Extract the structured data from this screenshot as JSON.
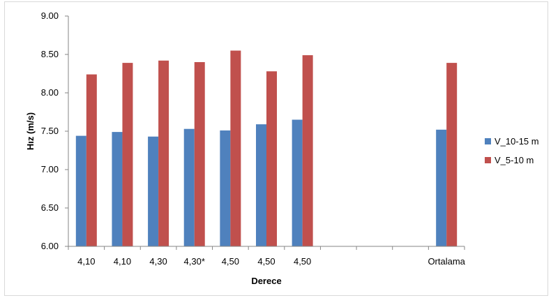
{
  "chart_data": {
    "type": "bar",
    "categories": [
      "4,10",
      "4,10",
      "4,30",
      "4,30*",
      "4,50",
      "4,50",
      "4,50",
      "",
      "",
      "",
      "Ortalama"
    ],
    "series": [
      {
        "name": "V_10-15 m",
        "color": "#4F81BD",
        "values": [
          7.44,
          7.49,
          7.43,
          7.53,
          7.51,
          7.59,
          7.65,
          null,
          null,
          null,
          7.52
        ]
      },
      {
        "name": "V_5-10 m",
        "color": "#C0504D",
        "values": [
          8.24,
          8.39,
          8.42,
          8.4,
          8.55,
          8.28,
          8.49,
          null,
          null,
          null,
          8.39
        ]
      }
    ],
    "xlabel": "Derece",
    "ylabel": "Hız (m/s)",
    "ylim": [
      6.0,
      9.0
    ],
    "yticks": [
      "6.00",
      "6.50",
      "7.00",
      "7.50",
      "8.00",
      "8.50",
      "9.00"
    ],
    "grid": false,
    "legend_position": "right"
  }
}
